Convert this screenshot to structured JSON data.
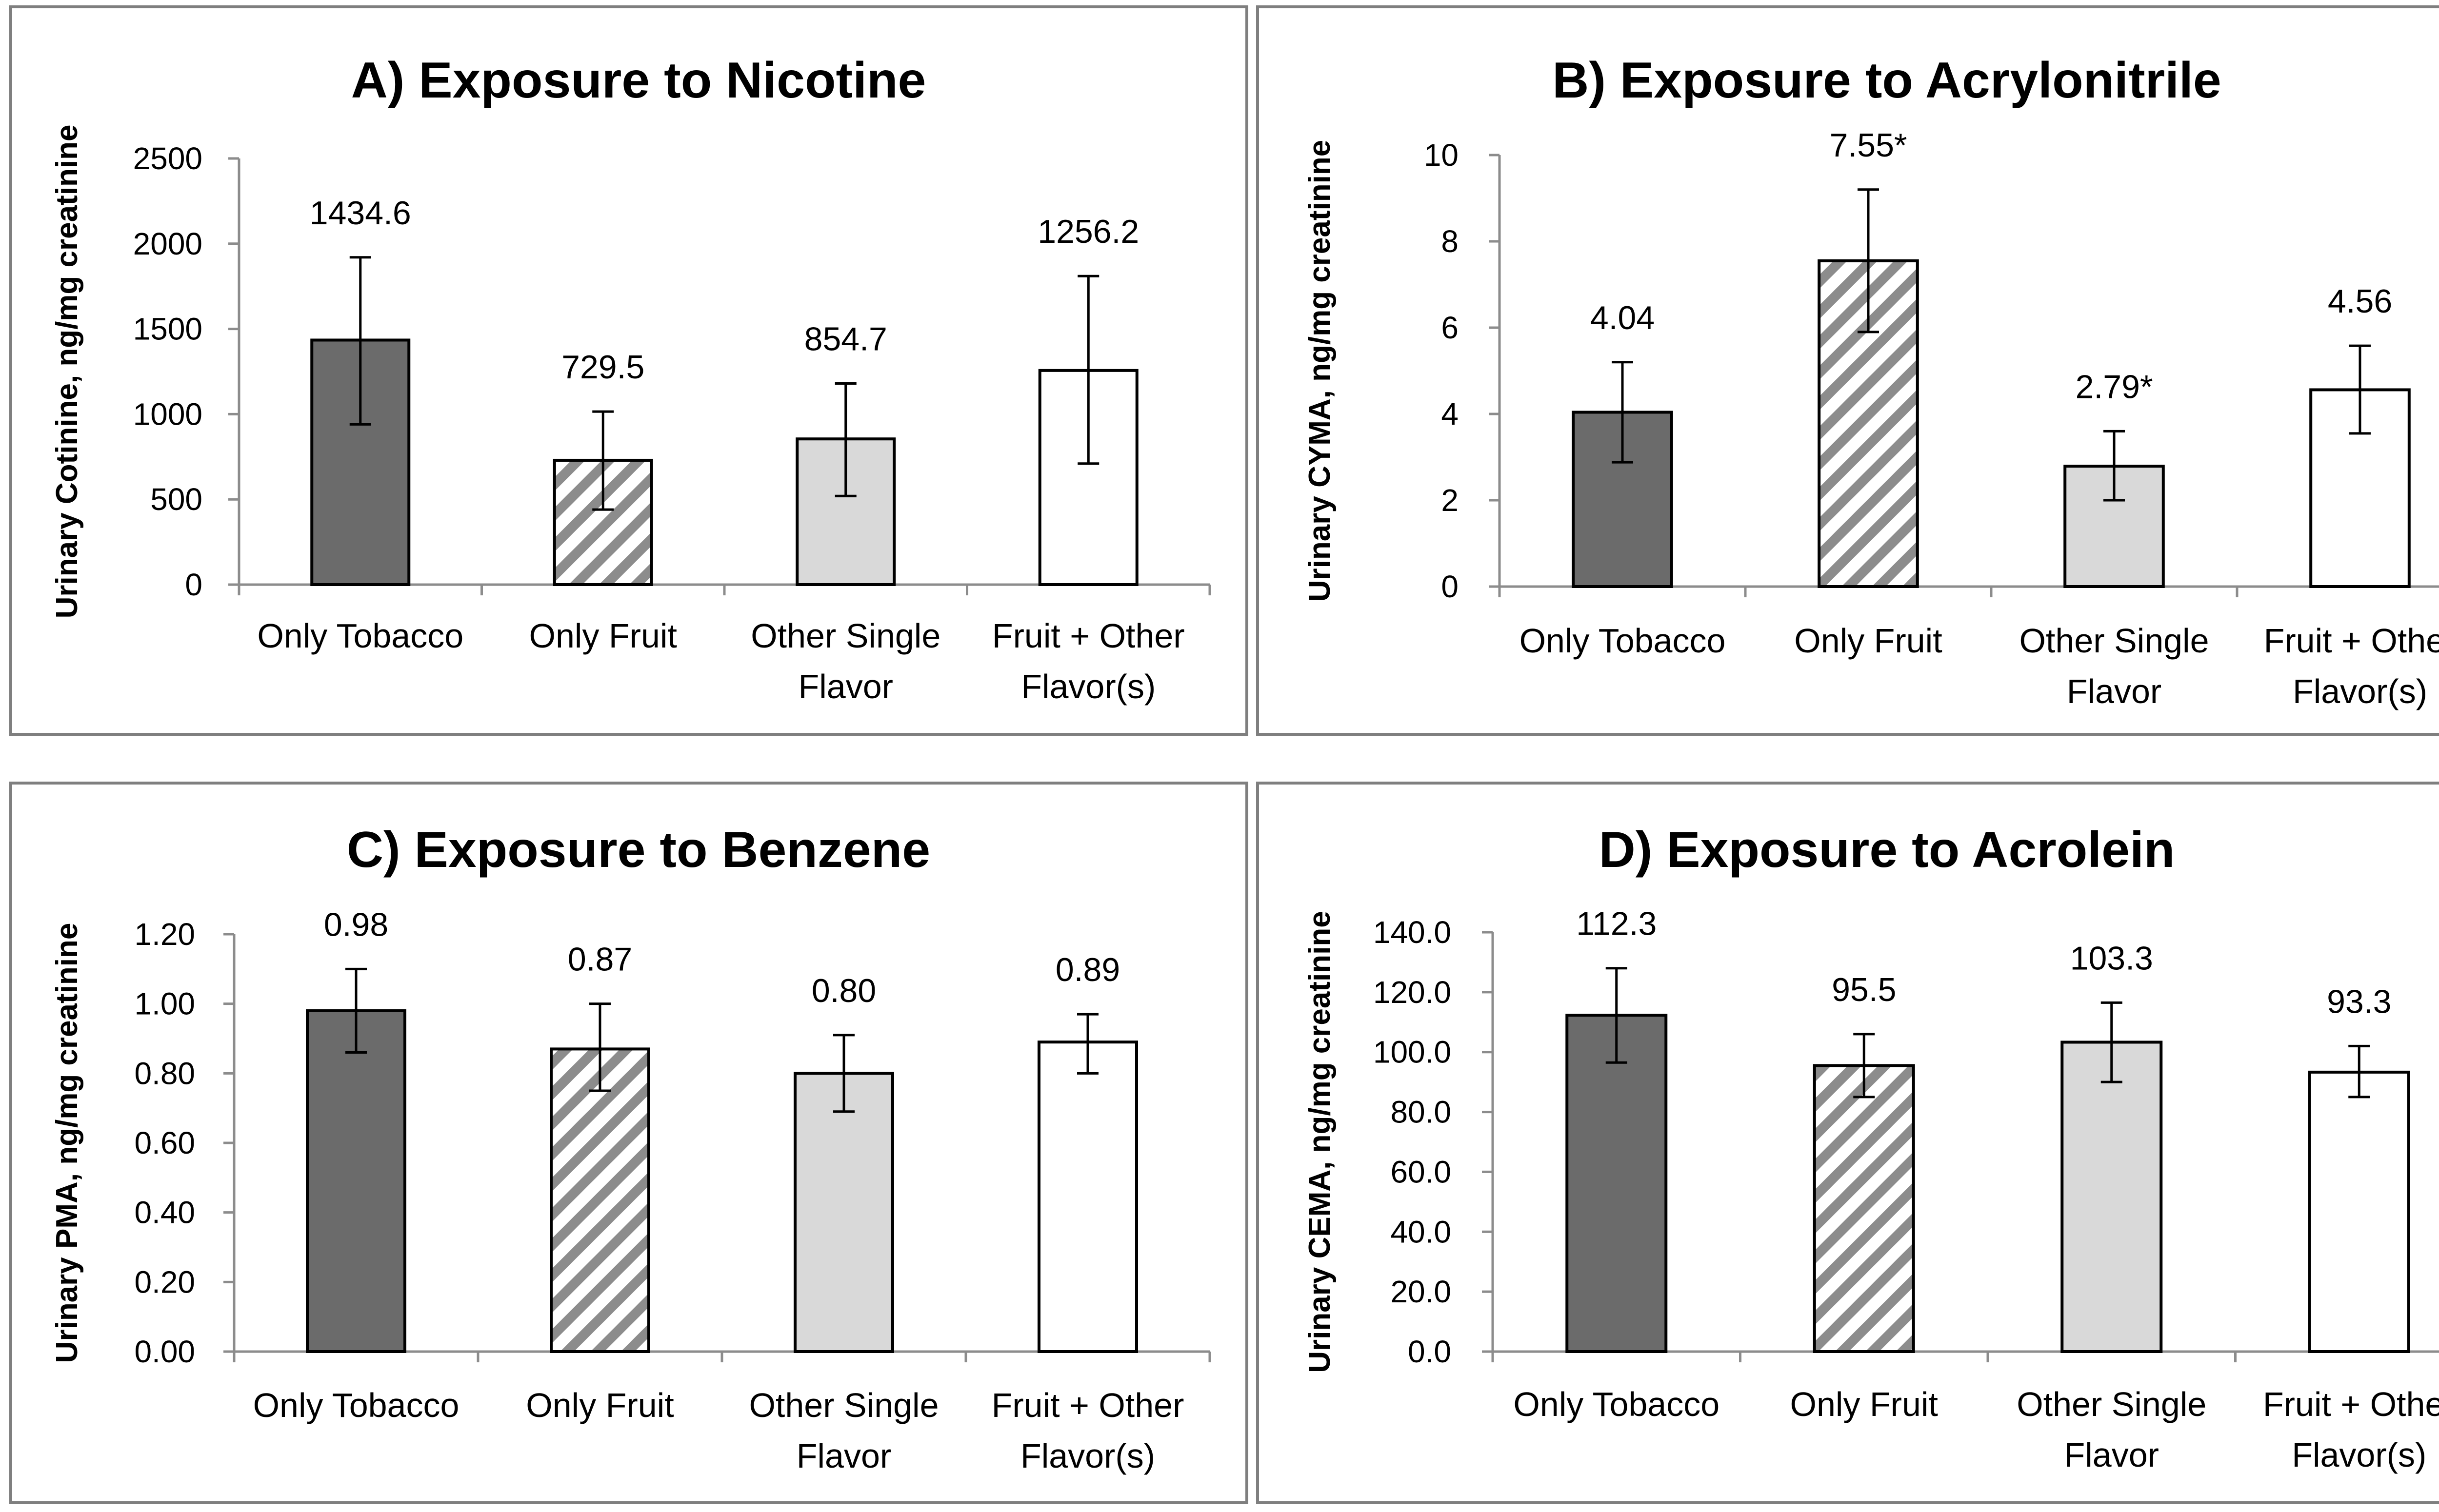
{
  "colors": {
    "only_tobacco": "#6b6b6b",
    "only_fruit_stripe": "#8c8c8c",
    "other_single": "#d9d9d9",
    "fruit_other": "#ffffff",
    "axis": "#8c8c8c",
    "panel_border": "#7f7f7f"
  },
  "chart_data": [
    {
      "type": "bar",
      "title": "A) Exposure to Nicotine",
      "ylabel": "Urinary Cotinine, ng/mg creatinine",
      "xlabel": "",
      "categories": [
        [
          "Only Tobacco"
        ],
        [
          "Only Fruit"
        ],
        [
          "Other Single",
          "Flavor"
        ],
        [
          "Fruit + Other",
          "Flavor(s)"
        ]
      ],
      "values": [
        1434.6,
        729.5,
        854.7,
        1256.2
      ],
      "error_low": [
        940,
        440,
        520,
        710
      ],
      "error_high": [
        1920,
        1015,
        1180,
        1810
      ],
      "labels": [
        "1434.6",
        "729.5",
        "854.7",
        "1256.2"
      ],
      "ylim": [
        0,
        2500
      ],
      "ticks": [
        "0",
        "500",
        "1000",
        "1500",
        "2000",
        "2500"
      ],
      "grid": false
    },
    {
      "type": "bar",
      "title": "B) Exposure to Acrylonitrile",
      "ylabel": "Urinary CYMA, ng/mg creatinine",
      "xlabel": "",
      "categories": [
        [
          "Only Tobacco"
        ],
        [
          "Only Fruit"
        ],
        [
          "Other Single",
          "Flavor"
        ],
        [
          "Fruit + Other",
          "Flavor(s)"
        ]
      ],
      "values": [
        4.04,
        7.55,
        2.79,
        4.56
      ],
      "error_low": [
        2.88,
        5.9,
        2.0,
        3.55
      ],
      "error_high": [
        5.2,
        9.2,
        3.6,
        5.58
      ],
      "labels": [
        "4.04",
        "7.55*",
        "2.79*",
        "4.56"
      ],
      "ylim": [
        0,
        10
      ],
      "ticks": [
        "0",
        "2",
        "4",
        "6",
        "8",
        "10"
      ],
      "grid": false
    },
    {
      "type": "bar",
      "title": "C) Exposure to Benzene",
      "ylabel": "Urinary PMA, ng/mg creatinine",
      "xlabel": "",
      "categories": [
        [
          "Only Tobacco"
        ],
        [
          "Only Fruit"
        ],
        [
          "Other Single",
          "Flavor"
        ],
        [
          "Fruit + Other",
          "Flavor(s)"
        ]
      ],
      "values": [
        0.98,
        0.87,
        0.8,
        0.89
      ],
      "error_low": [
        0.86,
        0.75,
        0.69,
        0.8
      ],
      "error_high": [
        1.1,
        1.0,
        0.91,
        0.97
      ],
      "labels": [
        "0.98",
        "0.87",
        "0.80",
        "0.89"
      ],
      "ylim": [
        0,
        1.2
      ],
      "ticks": [
        "0.00",
        "0.20",
        "0.40",
        "0.60",
        "0.80",
        "1.00",
        "1.20"
      ],
      "grid": false
    },
    {
      "type": "bar",
      "title": "D) Exposure to Acrolein",
      "ylabel": "Urinary CEMA, ng/mg creatinine",
      "xlabel": "",
      "categories": [
        [
          "Only Tobacco"
        ],
        [
          "Only Fruit"
        ],
        [
          "Other Single",
          "Flavor"
        ],
        [
          "Fruit + Other",
          "Flavor(s)"
        ]
      ],
      "values": [
        112.3,
        95.5,
        103.3,
        93.3
      ],
      "error_low": [
        96.5,
        85.0,
        90.0,
        85.0
      ],
      "error_high": [
        128.0,
        106.0,
        116.5,
        102.0
      ],
      "labels": [
        "112.3",
        "95.5",
        "103.3",
        "93.3"
      ],
      "ylim": [
        0,
        140
      ],
      "ticks": [
        "0.0",
        "20.0",
        "40.0",
        "60.0",
        "80.0",
        "100.0",
        "120.0",
        "140.0"
      ],
      "grid": false
    }
  ]
}
